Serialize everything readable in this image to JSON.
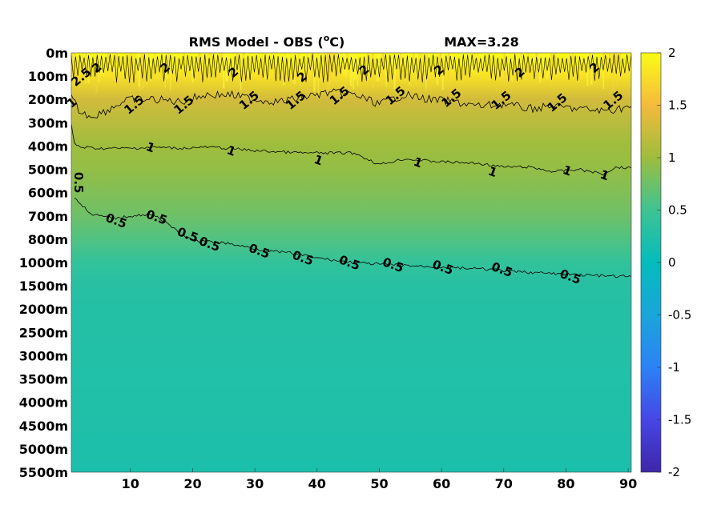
{
  "chart_data": {
    "type": "heatmap",
    "title": "RMS Model - OBS (",
    "title_unit_sup": "o",
    "title_unit_end": "C)",
    "max_label": "MAX=3.28",
    "x_ticks": [
      10,
      20,
      30,
      40,
      50,
      60,
      70,
      80,
      90
    ],
    "x_range": [
      0.5,
      90.5
    ],
    "y_ticks": [
      "0m",
      "100m",
      "200m",
      "300m",
      "400m",
      "500m",
      "600m",
      "700m",
      "800m",
      "1000m",
      "1500m",
      "2000m",
      "2500m",
      "3000m",
      "3500m",
      "4000m",
      "4500m",
      "5000m",
      "5500m"
    ],
    "colorbar": {
      "range": [
        -2,
        2
      ],
      "ticks": [
        "2",
        "1.5",
        "1",
        "0.5",
        "0",
        "-0.5",
        "-1",
        "-1.5",
        "-2"
      ],
      "colormap": "parula"
    },
    "depth_profile": [
      2.0,
      1.8,
      1.3,
      1.15,
      1.0,
      0.95,
      0.85,
      0.75,
      0.6,
      0.4,
      0.3,
      0.28,
      0.27,
      0.26,
      0.25,
      0.24,
      0.23,
      0.22,
      0.2
    ],
    "contours": [
      {
        "level": "2",
        "levels_y": [
          0.4,
          1.0,
          0.3,
          0.8,
          0.5,
          0.9,
          0.4,
          1.0,
          0.6,
          0.9
        ],
        "labels": [
          {
            "x": 2.5,
            "y": 1.0,
            "text": "2.5"
          },
          {
            "x": 5,
            "y": 0.6,
            "text": "2"
          },
          {
            "x": 16,
            "y": 0.6,
            "text": "2"
          },
          {
            "x": 27,
            "y": 0.8,
            "text": "2"
          },
          {
            "x": 38,
            "y": 1.0,
            "text": "2"
          },
          {
            "x": 48,
            "y": 0.7,
            "text": "2"
          },
          {
            "x": 60,
            "y": 0.7,
            "text": "2"
          },
          {
            "x": 73,
            "y": 0.8,
            "text": "2"
          },
          {
            "x": 85,
            "y": 0.6,
            "text": "2"
          }
        ]
      },
      {
        "level": "1.5",
        "line": [
          [
            0.5,
            1.9
          ],
          [
            2,
            2.6
          ],
          [
            4,
            2.7
          ],
          [
            6,
            2.5
          ],
          [
            8,
            2.2
          ],
          [
            10,
            2.0
          ],
          [
            14,
            2.0
          ],
          [
            18,
            2.1
          ],
          [
            22,
            1.8
          ],
          [
            26,
            1.8
          ],
          [
            30,
            2.0
          ],
          [
            34,
            2.1
          ],
          [
            38,
            1.9
          ],
          [
            42,
            1.7
          ],
          [
            46,
            1.8
          ],
          [
            50,
            2.2
          ],
          [
            54,
            1.8
          ],
          [
            58,
            2.0
          ],
          [
            62,
            2.1
          ],
          [
            66,
            2.3
          ],
          [
            70,
            2.2
          ],
          [
            74,
            2.4
          ],
          [
            78,
            2.3
          ],
          [
            82,
            2.4
          ],
          [
            86,
            2.5
          ],
          [
            90.5,
            2.3
          ]
        ],
        "labels": [
          {
            "x": 1.0,
            "y": 2.1,
            "text": "1"
          },
          {
            "x": 11,
            "y": 2.2,
            "text": "1.5"
          },
          {
            "x": 19,
            "y": 2.2,
            "text": "1.5"
          },
          {
            "x": 29.5,
            "y": 2.0,
            "text": "1.5"
          },
          {
            "x": 37,
            "y": 2.0,
            "text": "1.5"
          },
          {
            "x": 44,
            "y": 1.8,
            "text": "1.5"
          },
          {
            "x": 53,
            "y": 1.8,
            "text": "1.5"
          },
          {
            "x": 62,
            "y": 1.9,
            "text": "1.5"
          },
          {
            "x": 70,
            "y": 2.0,
            "text": "1.5"
          },
          {
            "x": 79,
            "y": 2.1,
            "text": "1.5"
          },
          {
            "x": 88,
            "y": 2.0,
            "text": "1.5"
          }
        ]
      },
      {
        "level": "1",
        "line": [
          [
            0.5,
            3.1
          ],
          [
            1,
            3.9
          ],
          [
            2,
            4.05
          ],
          [
            5,
            4.1
          ],
          [
            10,
            4.1
          ],
          [
            14,
            4.05
          ],
          [
            18,
            4.1
          ],
          [
            22,
            4.05
          ],
          [
            26,
            4.1
          ],
          [
            30,
            4.2
          ],
          [
            34,
            4.25
          ],
          [
            38,
            4.3
          ],
          [
            42,
            4.3
          ],
          [
            46,
            4.3
          ],
          [
            50,
            4.8
          ],
          [
            54,
            4.55
          ],
          [
            58,
            4.65
          ],
          [
            62,
            4.7
          ],
          [
            66,
            4.75
          ],
          [
            70,
            4.9
          ],
          [
            74,
            4.9
          ],
          [
            78,
            5.1
          ],
          [
            82,
            5.0
          ],
          [
            86,
            5.2
          ],
          [
            88,
            4.9
          ],
          [
            90.5,
            4.95
          ]
        ],
        "labels": [
          {
            "x": 13,
            "y": 4.05,
            "text": "1"
          },
          {
            "x": 26,
            "y": 4.2,
            "text": "1"
          },
          {
            "x": 40,
            "y": 4.6,
            "text": "1"
          },
          {
            "x": 56,
            "y": 4.7,
            "text": "1"
          },
          {
            "x": 68,
            "y": 5.1,
            "text": "1"
          },
          {
            "x": 80,
            "y": 5.05,
            "text": "1"
          },
          {
            "x": 86,
            "y": 5.25,
            "text": "1"
          }
        ]
      },
      {
        "level": "0.5",
        "line": [
          [
            1,
            6.2
          ],
          [
            2,
            6.5
          ],
          [
            4,
            6.95
          ],
          [
            6,
            7.05
          ],
          [
            8,
            7.1
          ],
          [
            10,
            7.0
          ],
          [
            12,
            6.95
          ],
          [
            14,
            7.0
          ],
          [
            16,
            7.3
          ],
          [
            18,
            7.8
          ],
          [
            20,
            8.05
          ],
          [
            22,
            8.1
          ],
          [
            25,
            8.15
          ],
          [
            28,
            8.3
          ],
          [
            32,
            8.5
          ],
          [
            36,
            8.6
          ],
          [
            40,
            8.8
          ],
          [
            44,
            8.95
          ],
          [
            48,
            9.05
          ],
          [
            52,
            9.1
          ],
          [
            56,
            9.15
          ],
          [
            60,
            9.2
          ],
          [
            64,
            9.25
          ],
          [
            68,
            9.3
          ],
          [
            72,
            9.4
          ],
          [
            76,
            9.45
          ],
          [
            80,
            9.5
          ],
          [
            84,
            9.55
          ],
          [
            88,
            9.6
          ],
          [
            90.5,
            9.6
          ]
        ],
        "labels": [
          {
            "x": 0.5,
            "y": 5.4,
            "text": "0.5"
          },
          {
            "x": 7.5,
            "y": 7.2,
            "text": "0.5"
          },
          {
            "x": 14,
            "y": 7.05,
            "text": "0.5"
          },
          {
            "x": 19,
            "y": 7.8,
            "text": "0.5"
          },
          {
            "x": 22.5,
            "y": 8.2,
            "text": "0.5"
          },
          {
            "x": 30.5,
            "y": 8.5,
            "text": "0.5"
          },
          {
            "x": 37.5,
            "y": 8.8,
            "text": "0.5"
          },
          {
            "x": 45,
            "y": 9.0,
            "text": "0.5"
          },
          {
            "x": 52,
            "y": 9.1,
            "text": "0.5"
          },
          {
            "x": 60,
            "y": 9.2,
            "text": "0.5"
          },
          {
            "x": 69.5,
            "y": 9.3,
            "text": "0.5"
          },
          {
            "x": 80.5,
            "y": 9.6,
            "text": "0.5"
          }
        ]
      }
    ]
  }
}
